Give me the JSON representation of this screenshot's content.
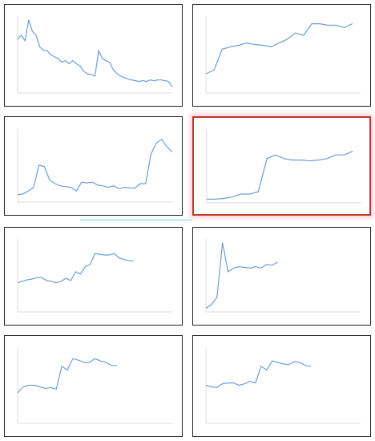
{
  "chart_data": [
    {
      "type": "line",
      "color": "#6c9fd6",
      "xlim": [
        0,
        42
      ],
      "ylim": [
        0,
        100
      ],
      "values": [
        70,
        75,
        68,
        95,
        80,
        75,
        60,
        55,
        55,
        50,
        47,
        45,
        40,
        42,
        38,
        42,
        38,
        35,
        28,
        25,
        24,
        22,
        55,
        45,
        42,
        40,
        30,
        25,
        22,
        20,
        18,
        17,
        16,
        15,
        16,
        15,
        17,
        16,
        17,
        17,
        16,
        15,
        8
      ]
    },
    {
      "type": "line",
      "color": "#6c9fd6",
      "xlim": [
        0,
        19
      ],
      "ylim": [
        0,
        100
      ],
      "values": [
        25,
        30,
        57,
        60,
        62,
        65,
        63,
        62,
        60,
        65,
        70,
        78,
        75,
        90,
        90,
        88,
        88,
        85,
        90
      ]
    },
    {
      "type": "line",
      "color": "#6c9fd6",
      "xlim": [
        0,
        29
      ],
      "ylim": [
        0,
        100
      ],
      "values": [
        10,
        11,
        15,
        20,
        50,
        48,
        30,
        25,
        22,
        21,
        20,
        15,
        27,
        26,
        27,
        23,
        22,
        20,
        22,
        18,
        20,
        19,
        19,
        25,
        25,
        65,
        80,
        85,
        75,
        68
      ]
    },
    {
      "type": "line",
      "color": "#6c9fd6",
      "xlim": [
        0,
        18
      ],
      "ylim": [
        0,
        100
      ],
      "values": [
        5,
        5,
        6,
        8,
        12,
        12,
        15,
        60,
        65,
        60,
        58,
        58,
        57,
        58,
        60,
        65,
        65,
        70
      ]
    },
    {
      "type": "line",
      "color": "#6c9fd6",
      "xlim": [
        0,
        32
      ],
      "ylim": [
        0,
        100
      ],
      "values": [
        40,
        42,
        44,
        45,
        47,
        47,
        43,
        42,
        40,
        42,
        46,
        43,
        55,
        52,
        62,
        65,
        80,
        79,
        78,
        78,
        80,
        74,
        72,
        70,
        70
      ]
    },
    {
      "type": "line",
      "color": "#6c9fd6",
      "xlim": [
        0,
        28
      ],
      "ylim": [
        0,
        100
      ],
      "values": [
        5,
        10,
        20,
        95,
        55,
        60,
        62,
        61,
        60,
        62,
        60,
        65,
        64,
        68
      ]
    },
    {
      "type": "line",
      "color": "#6c9fd6",
      "xlim": [
        0,
        28
      ],
      "ylim": [
        0,
        100
      ],
      "values": [
        40,
        48,
        50,
        50,
        48,
        46,
        47,
        45,
        75,
        70,
        85,
        83,
        80,
        80,
        85,
        82,
        80,
        76,
        76
      ]
    },
    {
      "type": "line",
      "color": "#6c9fd6",
      "xlim": [
        0,
        28
      ],
      "ylim": [
        0,
        100
      ],
      "values": [
        50,
        48,
        47,
        52,
        53,
        53,
        50,
        52,
        55,
        53,
        75,
        70,
        82,
        80,
        78,
        77,
        81,
        80,
        76,
        75
      ]
    }
  ]
}
